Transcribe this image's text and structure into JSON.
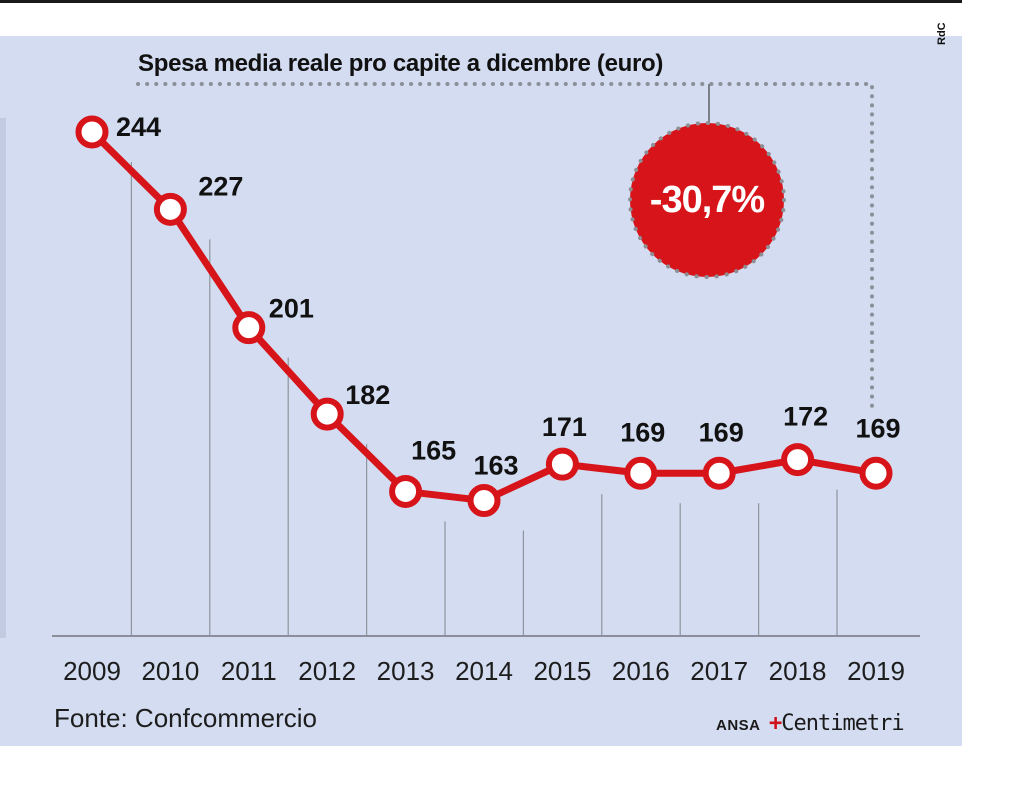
{
  "chart_data": {
    "type": "line",
    "title": "Spesa media reale pro capite a dicembre (euro)",
    "categories": [
      "2009",
      "2010",
      "2011",
      "2012",
      "2013",
      "2014",
      "2015",
      "2016",
      "2017",
      "2018",
      "2019"
    ],
    "values": [
      244,
      227,
      201,
      182,
      165,
      163,
      171,
      169,
      169,
      172,
      169
    ],
    "data_labels": [
      "244",
      "227",
      "201",
      "182",
      "165",
      "163",
      "171",
      "169",
      "169",
      "172",
      "169"
    ],
    "annotation": "-30,7%",
    "colors": {
      "line": "#d7141a",
      "badge": "#d7141a",
      "background": "#d3dcf0"
    }
  },
  "source": "Fonte: Confcommercio",
  "credit": {
    "agency": "ANSA",
    "brand_mark": "+",
    "brand": "Centimetri"
  },
  "watermark": "RdC"
}
